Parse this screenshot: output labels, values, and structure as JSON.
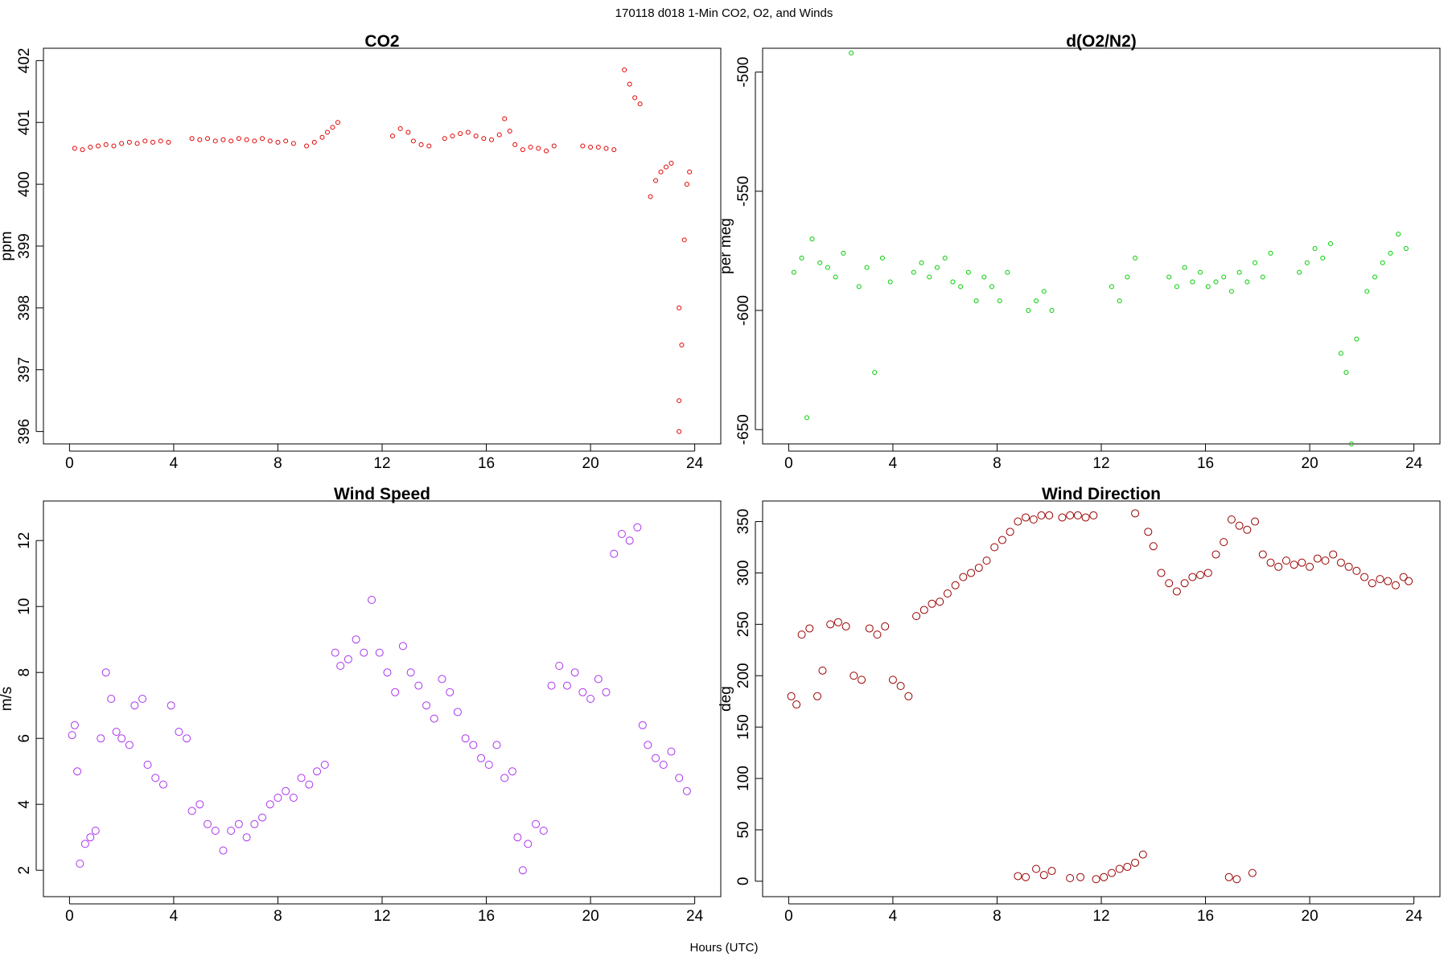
{
  "figure": {
    "suptitle": "170118   d018   1-Min CO2, O2, and Winds",
    "common_xlabel": "Hours (UTC)"
  },
  "chart_data": [
    {
      "type": "scatter",
      "title": "CO2",
      "ylabel": "ppm",
      "xlim": [
        -1,
        25
      ],
      "ylim": [
        395.8,
        402.2
      ],
      "xticks": [
        0,
        4,
        8,
        12,
        16,
        20,
        24
      ],
      "yticks": [
        396,
        397,
        398,
        399,
        400,
        401,
        402
      ],
      "color": "#e00000",
      "points": [
        [
          0.2,
          400.58
        ],
        [
          0.5,
          400.56
        ],
        [
          0.8,
          400.6
        ],
        [
          1.1,
          400.62
        ],
        [
          1.4,
          400.64
        ],
        [
          1.7,
          400.62
        ],
        [
          2.0,
          400.66
        ],
        [
          2.3,
          400.68
        ],
        [
          2.6,
          400.66
        ],
        [
          2.9,
          400.7
        ],
        [
          3.2,
          400.68
        ],
        [
          3.5,
          400.7
        ],
        [
          3.8,
          400.68
        ],
        [
          4.7,
          400.74
        ],
        [
          5.0,
          400.72
        ],
        [
          5.3,
          400.74
        ],
        [
          5.6,
          400.7
        ],
        [
          5.9,
          400.72
        ],
        [
          6.2,
          400.7
        ],
        [
          6.5,
          400.74
        ],
        [
          6.8,
          400.72
        ],
        [
          7.1,
          400.7
        ],
        [
          7.4,
          400.74
        ],
        [
          7.7,
          400.7
        ],
        [
          8.0,
          400.68
        ],
        [
          8.3,
          400.7
        ],
        [
          8.6,
          400.66
        ],
        [
          9.1,
          400.62
        ],
        [
          9.4,
          400.68
        ],
        [
          9.7,
          400.76
        ],
        [
          9.9,
          400.84
        ],
        [
          10.1,
          400.92
        ],
        [
          10.3,
          401.0
        ],
        [
          12.4,
          400.78
        ],
        [
          12.7,
          400.9
        ],
        [
          13.0,
          400.84
        ],
        [
          13.2,
          400.7
        ],
        [
          13.5,
          400.64
        ],
        [
          13.8,
          400.62
        ],
        [
          14.4,
          400.74
        ],
        [
          14.7,
          400.78
        ],
        [
          15.0,
          400.82
        ],
        [
          15.3,
          400.84
        ],
        [
          15.6,
          400.78
        ],
        [
          15.9,
          400.74
        ],
        [
          16.2,
          400.72
        ],
        [
          16.5,
          400.8
        ],
        [
          16.7,
          401.06
        ],
        [
          16.9,
          400.86
        ],
        [
          17.1,
          400.64
        ],
        [
          17.4,
          400.56
        ],
        [
          17.7,
          400.6
        ],
        [
          18.0,
          400.58
        ],
        [
          18.3,
          400.54
        ],
        [
          18.6,
          400.62
        ],
        [
          19.7,
          400.62
        ],
        [
          20.0,
          400.6
        ],
        [
          20.3,
          400.6
        ],
        [
          20.6,
          400.58
        ],
        [
          20.9,
          400.56
        ],
        [
          21.3,
          401.85
        ],
        [
          21.5,
          401.62
        ],
        [
          21.7,
          401.4
        ],
        [
          21.9,
          401.3
        ],
        [
          22.3,
          399.8
        ],
        [
          22.5,
          400.06
        ],
        [
          22.7,
          400.2
        ],
        [
          22.9,
          400.28
        ],
        [
          23.1,
          400.34
        ],
        [
          23.4,
          398.0
        ],
        [
          23.5,
          397.4
        ],
        [
          23.6,
          399.1
        ],
        [
          23.7,
          400.0
        ],
        [
          23.8,
          400.2
        ],
        [
          23.4,
          396.5
        ],
        [
          23.4,
          396.0
        ]
      ]
    },
    {
      "type": "scatter",
      "title": "d(O2/N2)",
      "ylabel": "per meg",
      "xlim": [
        -1,
        25
      ],
      "ylim": [
        -656,
        -490
      ],
      "xticks": [
        0,
        4,
        8,
        12,
        16,
        20,
        24
      ],
      "yticks": [
        -650,
        -600,
        -550,
        -500
      ],
      "ytick_labels": [
        "-650",
        "-600",
        "-550",
        "-500"
      ],
      "color": "#00cc00",
      "points": [
        [
          0.2,
          -584
        ],
        [
          0.5,
          -578
        ],
        [
          0.7,
          -645
        ],
        [
          0.9,
          -570
        ],
        [
          1.2,
          -580
        ],
        [
          1.5,
          -582
        ],
        [
          1.8,
          -586
        ],
        [
          2.1,
          -576
        ],
        [
          2.4,
          -492
        ],
        [
          2.7,
          -590
        ],
        [
          3.0,
          -582
        ],
        [
          3.3,
          -626
        ],
        [
          3.6,
          -578
        ],
        [
          3.9,
          -588
        ],
        [
          4.8,
          -584
        ],
        [
          5.1,
          -580
        ],
        [
          5.4,
          -586
        ],
        [
          5.7,
          -582
        ],
        [
          6.0,
          -578
        ],
        [
          6.3,
          -588
        ],
        [
          6.6,
          -590
        ],
        [
          6.9,
          -584
        ],
        [
          7.2,
          -596
        ],
        [
          7.5,
          -586
        ],
        [
          7.8,
          -590
        ],
        [
          8.1,
          -596
        ],
        [
          8.4,
          -584
        ],
        [
          9.2,
          -600
        ],
        [
          9.5,
          -596
        ],
        [
          9.8,
          -592
        ],
        [
          10.1,
          -600
        ],
        [
          12.4,
          -590
        ],
        [
          12.7,
          -596
        ],
        [
          13.0,
          -586
        ],
        [
          13.3,
          -578
        ],
        [
          14.6,
          -586
        ],
        [
          14.9,
          -590
        ],
        [
          15.2,
          -582
        ],
        [
          15.5,
          -588
        ],
        [
          15.8,
          -584
        ],
        [
          16.1,
          -590
        ],
        [
          16.4,
          -588
        ],
        [
          16.7,
          -586
        ],
        [
          17.0,
          -592
        ],
        [
          17.3,
          -584
        ],
        [
          17.6,
          -588
        ],
        [
          17.9,
          -580
        ],
        [
          18.2,
          -586
        ],
        [
          18.5,
          -576
        ],
        [
          19.6,
          -584
        ],
        [
          19.9,
          -580
        ],
        [
          20.2,
          -574
        ],
        [
          20.5,
          -578
        ],
        [
          20.8,
          -572
        ],
        [
          21.2,
          -618
        ],
        [
          21.4,
          -626
        ],
        [
          21.6,
          -656
        ],
        [
          21.8,
          -612
        ],
        [
          22.2,
          -592
        ],
        [
          22.5,
          -586
        ],
        [
          22.8,
          -580
        ],
        [
          23.1,
          -576
        ],
        [
          23.4,
          -568
        ],
        [
          23.7,
          -574
        ]
      ]
    },
    {
      "type": "scatter",
      "title": "Wind Speed",
      "ylabel": "m/s",
      "xlim": [
        -1,
        25
      ],
      "ylim": [
        1.2,
        13.2
      ],
      "xticks": [
        0,
        4,
        8,
        12,
        16,
        20,
        24
      ],
      "yticks": [
        2,
        4,
        6,
        8,
        10,
        12
      ],
      "color": "#aa33ee",
      "points": [
        [
          0.1,
          6.1
        ],
        [
          0.2,
          6.4
        ],
        [
          0.3,
          5.0
        ],
        [
          0.4,
          2.2
        ],
        [
          0.6,
          2.8
        ],
        [
          0.8,
          3.0
        ],
        [
          1.0,
          3.2
        ],
        [
          1.2,
          6.0
        ],
        [
          1.4,
          8.0
        ],
        [
          1.6,
          7.2
        ],
        [
          1.8,
          6.2
        ],
        [
          2.0,
          6.0
        ],
        [
          2.3,
          5.8
        ],
        [
          2.5,
          7.0
        ],
        [
          2.8,
          7.2
        ],
        [
          3.0,
          5.2
        ],
        [
          3.3,
          4.8
        ],
        [
          3.6,
          4.6
        ],
        [
          3.9,
          7.0
        ],
        [
          4.2,
          6.2
        ],
        [
          4.5,
          6.0
        ],
        [
          4.7,
          3.8
        ],
        [
          5.0,
          4.0
        ],
        [
          5.3,
          3.4
        ],
        [
          5.6,
          3.2
        ],
        [
          5.9,
          2.6
        ],
        [
          6.2,
          3.2
        ],
        [
          6.5,
          3.4
        ],
        [
          6.8,
          3.0
        ],
        [
          7.1,
          3.4
        ],
        [
          7.4,
          3.6
        ],
        [
          7.7,
          4.0
        ],
        [
          8.0,
          4.2
        ],
        [
          8.3,
          4.4
        ],
        [
          8.6,
          4.2
        ],
        [
          8.9,
          4.8
        ],
        [
          9.2,
          4.6
        ],
        [
          9.5,
          5.0
        ],
        [
          9.8,
          5.2
        ],
        [
          10.2,
          8.6
        ],
        [
          10.4,
          8.2
        ],
        [
          10.7,
          8.4
        ],
        [
          11.0,
          9.0
        ],
        [
          11.3,
          8.6
        ],
        [
          11.6,
          10.2
        ],
        [
          11.9,
          8.6
        ],
        [
          12.2,
          8.0
        ],
        [
          12.5,
          7.4
        ],
        [
          12.8,
          8.8
        ],
        [
          13.1,
          8.0
        ],
        [
          13.4,
          7.6
        ],
        [
          13.7,
          7.0
        ],
        [
          14.0,
          6.6
        ],
        [
          14.3,
          7.8
        ],
        [
          14.6,
          7.4
        ],
        [
          14.9,
          6.8
        ],
        [
          15.2,
          6.0
        ],
        [
          15.5,
          5.8
        ],
        [
          15.8,
          5.4
        ],
        [
          16.1,
          5.2
        ],
        [
          16.4,
          5.8
        ],
        [
          16.7,
          4.8
        ],
        [
          17.0,
          5.0
        ],
        [
          17.2,
          3.0
        ],
        [
          17.4,
          2.0
        ],
        [
          17.6,
          2.8
        ],
        [
          17.9,
          3.4
        ],
        [
          18.2,
          3.2
        ],
        [
          18.5,
          7.6
        ],
        [
          18.8,
          8.2
        ],
        [
          19.1,
          7.6
        ],
        [
          19.4,
          8.0
        ],
        [
          19.7,
          7.4
        ],
        [
          20.0,
          7.2
        ],
        [
          20.3,
          7.8
        ],
        [
          20.6,
          7.4
        ],
        [
          20.9,
          11.6
        ],
        [
          21.2,
          12.2
        ],
        [
          21.5,
          12.0
        ],
        [
          21.8,
          12.4
        ],
        [
          22.0,
          6.4
        ],
        [
          22.2,
          5.8
        ],
        [
          22.5,
          5.4
        ],
        [
          22.8,
          5.2
        ],
        [
          23.1,
          5.6
        ],
        [
          23.4,
          4.8
        ],
        [
          23.7,
          4.4
        ]
      ]
    },
    {
      "type": "scatter",
      "title": "Wind Direction",
      "ylabel": "deg",
      "xlim": [
        -1,
        25
      ],
      "ylim": [
        -15,
        370
      ],
      "xticks": [
        0,
        4,
        8,
        12,
        16,
        20,
        24
      ],
      "yticks": [
        0,
        50,
        100,
        150,
        200,
        250,
        300,
        350
      ],
      "color": "#990000",
      "points": [
        [
          0.1,
          180
        ],
        [
          0.3,
          172
        ],
        [
          0.5,
          240
        ],
        [
          0.8,
          246
        ],
        [
          1.1,
          180
        ],
        [
          1.3,
          205
        ],
        [
          1.6,
          250
        ],
        [
          1.9,
          252
        ],
        [
          2.2,
          248
        ],
        [
          2.5,
          200
        ],
        [
          2.8,
          196
        ],
        [
          3.1,
          246
        ],
        [
          3.4,
          240
        ],
        [
          3.7,
          248
        ],
        [
          4.0,
          196
        ],
        [
          4.3,
          190
        ],
        [
          4.6,
          180
        ],
        [
          4.9,
          258
        ],
        [
          5.2,
          264
        ],
        [
          5.5,
          270
        ],
        [
          5.8,
          272
        ],
        [
          6.1,
          280
        ],
        [
          6.4,
          288
        ],
        [
          6.7,
          296
        ],
        [
          7.0,
          300
        ],
        [
          7.3,
          305
        ],
        [
          7.6,
          312
        ],
        [
          7.9,
          325
        ],
        [
          8.2,
          332
        ],
        [
          8.5,
          340
        ],
        [
          8.8,
          350
        ],
        [
          9.1,
          354
        ],
        [
          9.4,
          352
        ],
        [
          9.7,
          356
        ],
        [
          10.0,
          356
        ],
        [
          10.5,
          354
        ],
        [
          10.8,
          356
        ],
        [
          11.1,
          356
        ],
        [
          11.4,
          354
        ],
        [
          11.7,
          356
        ],
        [
          8.8,
          5
        ],
        [
          9.1,
          4
        ],
        [
          9.5,
          12
        ],
        [
          9.8,
          6
        ],
        [
          10.1,
          10
        ],
        [
          10.8,
          3
        ],
        [
          11.2,
          4
        ],
        [
          11.8,
          2
        ],
        [
          12.1,
          4
        ],
        [
          12.4,
          8
        ],
        [
          12.7,
          12
        ],
        [
          13.0,
          14
        ],
        [
          13.3,
          18
        ],
        [
          13.6,
          26
        ],
        [
          13.3,
          358
        ],
        [
          13.8,
          340
        ],
        [
          14.0,
          326
        ],
        [
          14.3,
          300
        ],
        [
          14.6,
          290
        ],
        [
          14.9,
          282
        ],
        [
          15.2,
          290
        ],
        [
          15.5,
          296
        ],
        [
          15.8,
          298
        ],
        [
          16.1,
          300
        ],
        [
          16.4,
          318
        ],
        [
          16.7,
          330
        ],
        [
          17.0,
          352
        ],
        [
          17.3,
          346
        ],
        [
          17.6,
          342
        ],
        [
          17.9,
          350
        ],
        [
          18.2,
          318
        ],
        [
          18.5,
          310
        ],
        [
          18.8,
          306
        ],
        [
          19.1,
          312
        ],
        [
          19.4,
          308
        ],
        [
          19.7,
          310
        ],
        [
          20.0,
          306
        ],
        [
          20.3,
          314
        ],
        [
          20.6,
          312
        ],
        [
          20.9,
          318
        ],
        [
          21.2,
          310
        ],
        [
          21.5,
          306
        ],
        [
          21.8,
          302
        ],
        [
          22.1,
          296
        ],
        [
          22.4,
          290
        ],
        [
          22.7,
          294
        ],
        [
          23.0,
          292
        ],
        [
          23.3,
          288
        ],
        [
          23.6,
          296
        ],
        [
          23.8,
          292
        ],
        [
          16.9,
          4
        ],
        [
          17.2,
          2
        ],
        [
          17.8,
          8
        ]
      ]
    }
  ]
}
